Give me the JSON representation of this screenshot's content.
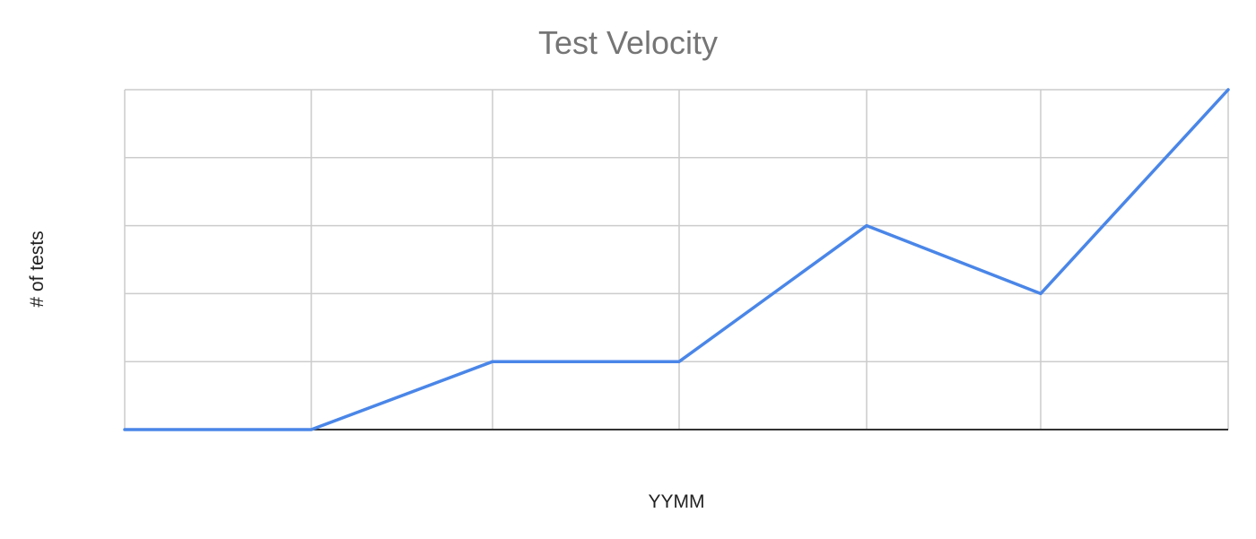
{
  "chart_data": {
    "type": "line",
    "title": "Test Velocity",
    "xlabel": "YYMM",
    "ylabel": "# of tests",
    "x": [
      0,
      1,
      2,
      3,
      4,
      5,
      6
    ],
    "xlim": [
      0,
      6
    ],
    "ylim": [
      0,
      5
    ],
    "y_grid_count": 5,
    "grid": true,
    "legend": "none",
    "series": [
      {
        "values": [
          0,
          0,
          1,
          1,
          3,
          2,
          5
        ],
        "color": "#4a86e8"
      }
    ]
  }
}
